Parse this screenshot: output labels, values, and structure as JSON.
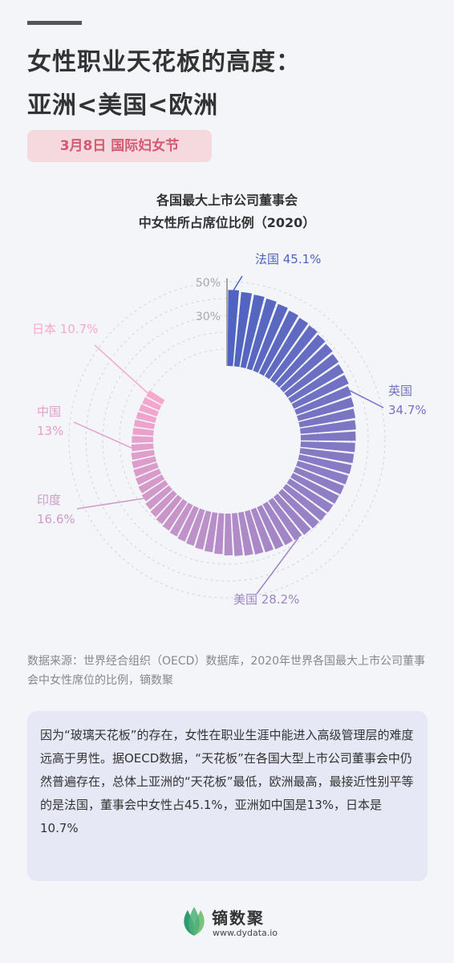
{
  "header": {
    "title_line1": "女性职业天花板的高度：",
    "title_line2": "亚洲<美国<欧洲",
    "date_badge": "3月8日  国际妇女节"
  },
  "chart_data": {
    "type": "bar",
    "layout": "radial",
    "title_line1": "各国最大上市公司董事会",
    "title_line2": "中女性所占席位比例（2020）",
    "unit": "%",
    "gridlines": [
      30,
      50
    ],
    "gridline_labels": [
      "30%",
      "50%"
    ],
    "values": [
      45.1,
      44.3,
      43.8,
      43.2,
      42.3,
      41.3,
      40.4,
      39.8,
      38.7,
      38.0,
      37.0,
      36.2,
      35.8,
      34.7,
      34.1,
      33.5,
      33.0,
      32.6,
      32.3,
      32.0,
      31.7,
      31.3,
      30.9,
      30.5,
      30.1,
      29.7,
      29.4,
      28.9,
      28.2,
      27.7,
      27.3,
      26.8,
      26.3,
      25.8,
      25.3,
      24.8,
      24.1,
      23.5,
      22.9,
      22.2,
      21.6,
      20.9,
      20.1,
      19.4,
      18.6,
      17.8,
      16.6,
      15.8,
      15.2,
      14.6,
      14.2,
      13.6,
      13.0,
      12.7,
      12.3,
      12.0,
      11.6,
      11.3,
      11.0,
      10.7
    ],
    "colors": {
      "start": "#4f63c0",
      "end": "#f7a8cd"
    },
    "labeled_points": [
      {
        "index": 0,
        "country": "法国",
        "value_label": "45.1%"
      },
      {
        "index": 13,
        "country": "英国",
        "value_label": "34.7%"
      },
      {
        "index": 28,
        "country": "美国",
        "value_label": "28.2%"
      },
      {
        "index": 46,
        "country": "印度",
        "value_label": "16.6%"
      },
      {
        "index": 52,
        "country": "中国",
        "value_label": "13%"
      },
      {
        "index": 59,
        "country": "日本",
        "value_label": "10.7%"
      }
    ]
  },
  "source": {
    "text": "数据来源：世界经合组织（OECD）数据库，2020年世界各国最大上市公司董事会中女性席位的比例，镝数聚"
  },
  "note": {
    "text": "因为“玻璃天花板”的存在，女性在职业生涯中能进入高级管理层的难度远高于男性。据OECD数据，“天花板”在各国大型上市公司董事会中仍然普遍存在，总体上亚洲的“天花板”最低，欧洲最高，最接近性别平等的是法国，董事会中女性占45.1%，亚洲如中国是13%，日本是10.7%"
  },
  "brand": {
    "name": "镝数聚",
    "url": "www.dydata.io",
    "logo_icon": "leaf-logo-icon"
  }
}
